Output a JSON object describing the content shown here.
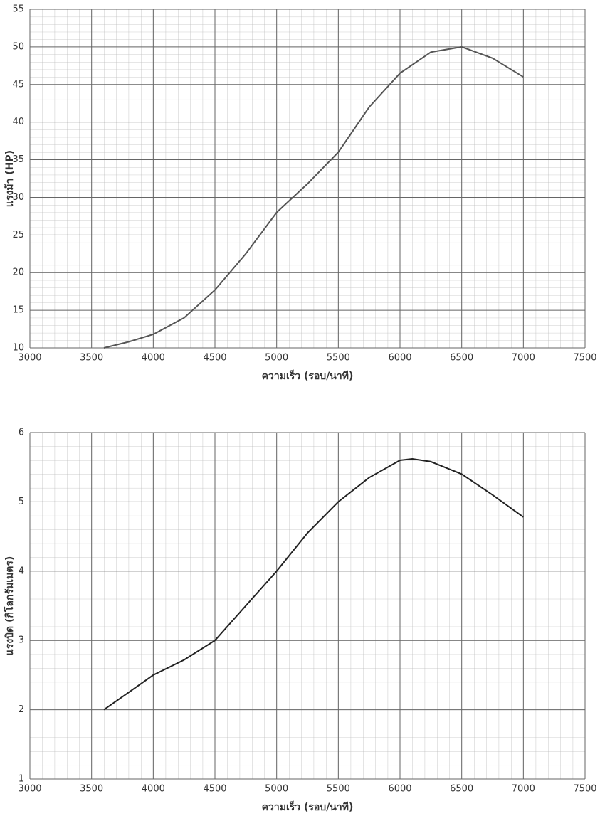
{
  "chart_data": [
    {
      "type": "line",
      "x_label": "ความเร็ว (รอบ/นาที)",
      "y_label": "แรงม้า (HP)",
      "xlim": [
        3000,
        7500
      ],
      "xticks": [
        3000,
        3500,
        4000,
        4500,
        5000,
        5500,
        6000,
        6500,
        7000,
        7500
      ],
      "ylim": [
        10,
        55
      ],
      "yticks": [
        10,
        15,
        20,
        25,
        30,
        35,
        40,
        45,
        50,
        55
      ],
      "grid": true,
      "series": [
        {
          "color": "#555555",
          "x": [
            3600,
            3800,
            4000,
            4250,
            4500,
            4750,
            5000,
            5250,
            5500,
            5750,
            6000,
            6250,
            6500,
            6750,
            7000
          ],
          "values": [
            10,
            10.8,
            11.8,
            14,
            17.7,
            22.5,
            28,
            31.8,
            36,
            42,
            46.5,
            49.3,
            50,
            48.5,
            46
          ]
        }
      ]
    },
    {
      "type": "line",
      "x_label": "ความเร็ว (รอบ/นาที)",
      "y_label": "แรงบิด (กิโลกรัมเมตร)",
      "xlim": [
        3000,
        7500
      ],
      "xticks": [
        3000,
        3500,
        4000,
        4500,
        5000,
        5500,
        6000,
        6500,
        7000,
        7500
      ],
      "ylim": [
        1,
        6
      ],
      "yticks": [
        1,
        2,
        3,
        4,
        5,
        6
      ],
      "grid": true,
      "series": [
        {
          "color": "#222222",
          "x": [
            3600,
            3800,
            4000,
            4250,
            4500,
            4750,
            5000,
            5250,
            5500,
            5750,
            6000,
            6100,
            6250,
            6500,
            6750,
            7000
          ],
          "values": [
            2.0,
            2.25,
            2.5,
            2.72,
            3.0,
            3.5,
            4.0,
            4.55,
            5.0,
            5.35,
            5.6,
            5.62,
            5.58,
            5.4,
            5.1,
            4.78
          ]
        }
      ]
    }
  ]
}
